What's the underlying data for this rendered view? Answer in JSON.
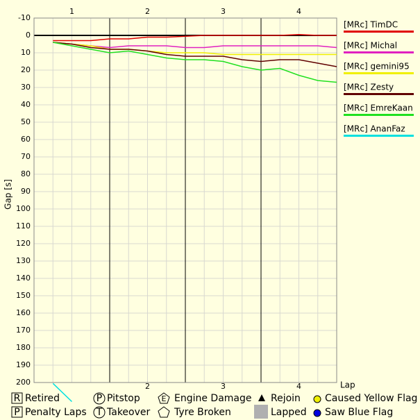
{
  "chart_data": {
    "type": "line",
    "y_label": "Gap [s]",
    "x_label": "Lap",
    "x": [
      0.75,
      1,
      1.25,
      1.5,
      1.75,
      2,
      2.25,
      2.5,
      2.75,
      3,
      3.25,
      3.5,
      3.75,
      4,
      4.25,
      4.5
    ],
    "xlim": [
      0.5,
      4.5
    ],
    "xticks": [
      1,
      2,
      3,
      4
    ],
    "lap_lines": [
      1.5,
      2.5,
      3.5
    ],
    "ylim": [
      -10,
      200
    ],
    "y_inverted": true,
    "yticks": [
      -10,
      0,
      10,
      20,
      30,
      40,
      50,
      60,
      70,
      80,
      90,
      100,
      110,
      120,
      130,
      140,
      150,
      160,
      170,
      180,
      190,
      200
    ],
    "grid": true,
    "series": [
      {
        "name": "[MRc] TimDC",
        "color": "#e00000",
        "values": [
          3,
          3,
          3,
          2,
          2,
          1,
          1,
          0.5,
          0,
          0,
          0,
          0,
          0,
          -0.5,
          0,
          0
        ]
      },
      {
        "name": "[MRc] Michal",
        "color": "#e020c0",
        "values": [
          4,
          5,
          6,
          7,
          6,
          6,
          6,
          7,
          7,
          6,
          6,
          6,
          6,
          6,
          6,
          7
        ]
      },
      {
        "name": "[MRc] gemini95",
        "color": "#f0f000",
        "values": [
          4,
          5,
          6,
          8,
          8,
          9,
          10,
          10,
          10,
          11,
          11,
          11,
          11,
          11,
          11,
          11
        ]
      },
      {
        "name": "[MRc] Zesty",
        "color": "#600000",
        "values": [
          4,
          5,
          7,
          8,
          8,
          9,
          11,
          12,
          12,
          12,
          14,
          15,
          14,
          14,
          16,
          18
        ]
      },
      {
        "name": "[MRc] EmreKaan",
        "color": "#20e020",
        "values": [
          4,
          6,
          8,
          10,
          9,
          11,
          13,
          14,
          14,
          15,
          18,
          20,
          19,
          23,
          26,
          27
        ]
      },
      {
        "name": "[MRc] AnanFaz",
        "color": "#00e0e0",
        "values": [
          200.5,
          211,
          null,
          null,
          null,
          null,
          null,
          null,
          null,
          null,
          null,
          null,
          null,
          null,
          null,
          null
        ]
      }
    ]
  },
  "symbol_legend": [
    {
      "icon": "R",
      "label": "Retired"
    },
    {
      "icon": "P",
      "label": "Pitstop"
    },
    {
      "icon": "E",
      "label": "Engine Damage"
    },
    {
      "label": "Rejoin"
    },
    {
      "label": "Caused Yellow Flag"
    },
    {
      "icon": "P",
      "label": "Penalty Laps"
    },
    {
      "icon": "T",
      "label": "Takeover"
    },
    {
      "label": "Tyre Broken"
    },
    {
      "label": "Lapped"
    },
    {
      "label": "Saw Blue Flag"
    }
  ]
}
